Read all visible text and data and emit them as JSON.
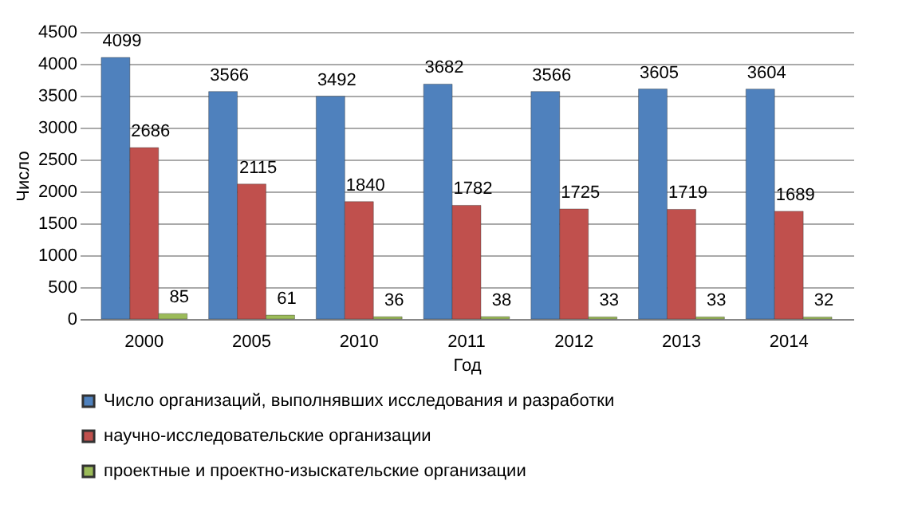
{
  "chart_data": {
    "type": "bar",
    "xlabel": "Год",
    "ylabel": "Число",
    "categories": [
      "2000",
      "2005",
      "2010",
      "2011",
      "2012",
      "2013",
      "2014"
    ],
    "series": [
      {
        "name": "Число организаций, выполнявших исследования и разработки",
        "color": "#4f81bd",
        "values": [
          4099,
          3566,
          3492,
          3682,
          3566,
          3605,
          3604
        ]
      },
      {
        "name": "научно-исследовательские организации",
        "color": "#c0504d",
        "values": [
          2686,
          2115,
          1840,
          1782,
          1725,
          1719,
          1689
        ]
      },
      {
        "name": "проектные и проектно-изыскательские организации",
        "color": "#9bbb59",
        "values": [
          85,
          61,
          36,
          38,
          33,
          33,
          32
        ]
      }
    ],
    "ylim": [
      0,
      4500
    ],
    "yticks": [
      0,
      500,
      1000,
      1500,
      2000,
      2500,
      3000,
      3500,
      4000,
      4500
    ],
    "grid": "y",
    "legend": "bottom",
    "data_labels": true
  }
}
